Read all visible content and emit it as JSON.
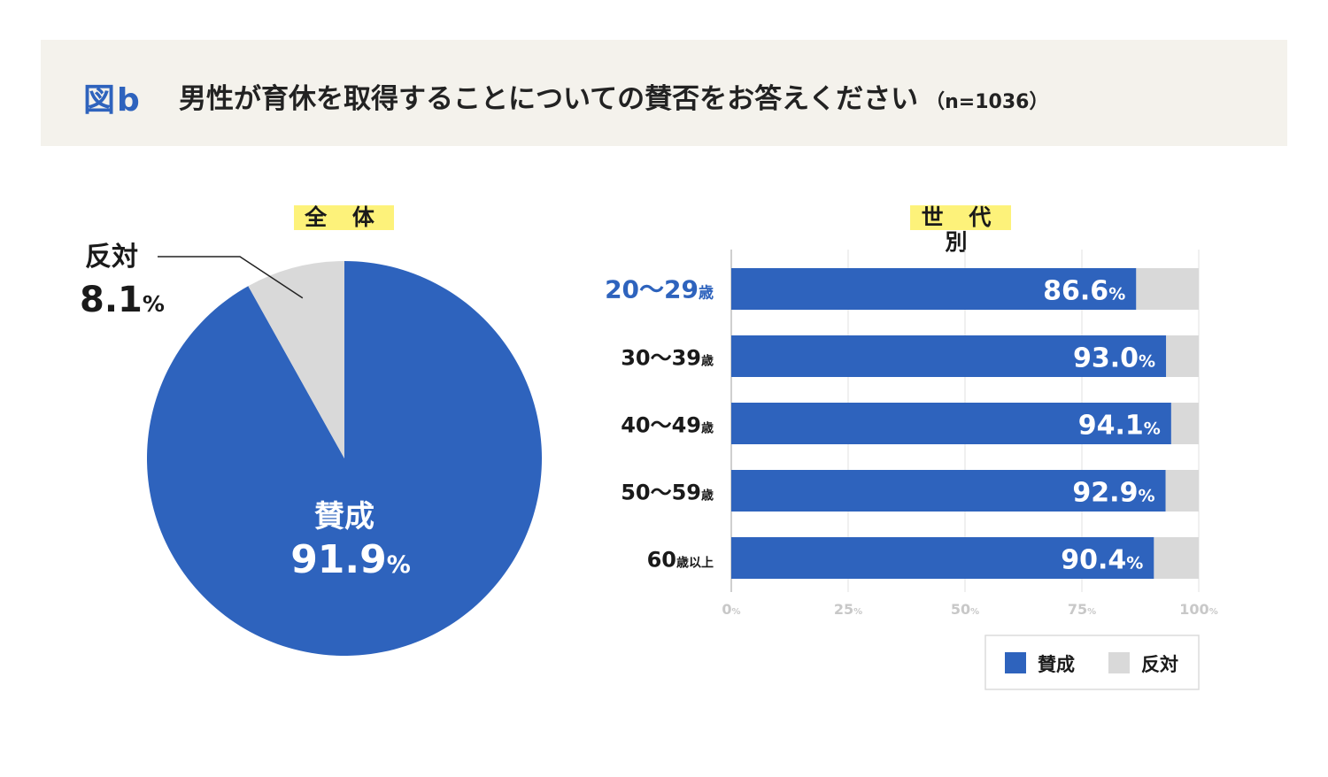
{
  "header": {
    "figure_label": "図b",
    "title": "男性が育休を取得することについての賛否をお答えください",
    "sample": "（n=1036）"
  },
  "colors": {
    "agree": "#2e63bd",
    "disagree": "#d9d9d9",
    "highlight": "#fdf27a",
    "banner": "#f4f2ec"
  },
  "chart_data": [
    {
      "type": "pie",
      "title": "全 体",
      "unit": "%",
      "slices": [
        {
          "label": "賛成",
          "value": 91.9,
          "display": "91.9"
        },
        {
          "label": "反対",
          "value": 8.1,
          "display": "8.1"
        }
      ]
    },
    {
      "type": "bar",
      "orientation": "horizontal",
      "stacked": true,
      "title": "世 代 別",
      "unit": "%",
      "categories": [
        {
          "main": "20〜29",
          "suffix": "歳",
          "highlight": true
        },
        {
          "main": "30〜39",
          "suffix": "歳",
          "highlight": false
        },
        {
          "main": "40〜49",
          "suffix": "歳",
          "highlight": false
        },
        {
          "main": "50〜59",
          "suffix": "歳",
          "highlight": false
        },
        {
          "main": "60",
          "suffix": "歳以上",
          "highlight": false
        }
      ],
      "series": [
        {
          "name": "賛成",
          "values": [
            86.6,
            93.0,
            94.1,
            92.9,
            90.4
          ],
          "labels": [
            "86.6",
            "93.0",
            "94.1",
            "92.9",
            "90.4"
          ]
        },
        {
          "name": "反対",
          "values": [
            13.4,
            7.0,
            5.9,
            7.1,
            9.6
          ]
        }
      ],
      "xlim": [
        0,
        100
      ],
      "xticks": [
        {
          "value": 0,
          "label": "0"
        },
        {
          "value": 25,
          "label": "25"
        },
        {
          "value": 50,
          "label": "50"
        },
        {
          "value": 75,
          "label": "75"
        },
        {
          "value": 100,
          "label": "100"
        }
      ],
      "tick_suffix": "%",
      "legend": [
        "賛成",
        "反対"
      ],
      "legend_position": "bottom-right"
    }
  ]
}
